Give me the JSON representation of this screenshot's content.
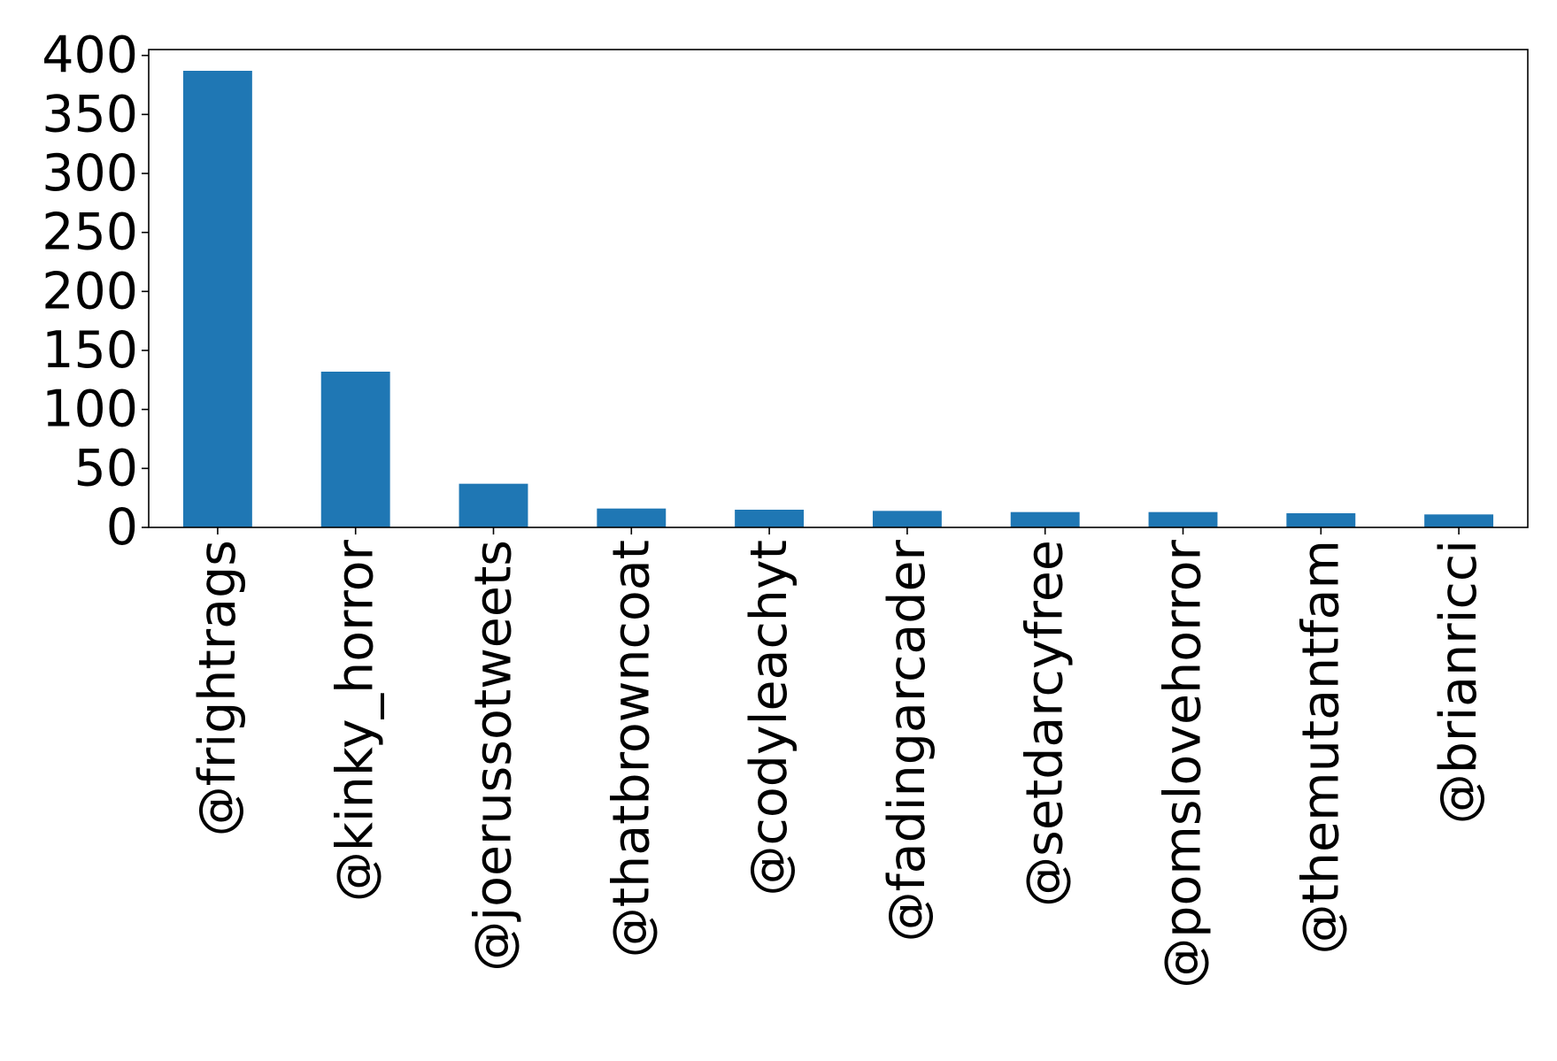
{
  "colors": {
    "bar": "#1f77b4",
    "axis": "#000000",
    "background": "#ffffff"
  },
  "chart_data": {
    "type": "bar",
    "title": "",
    "xlabel": "",
    "ylabel": "",
    "categories": [
      "@frightrags",
      "@kinky_horror",
      "@joerussotweets",
      "@thatbrowncoat",
      "@codyleachyt",
      "@fadingarcader",
      "@setdarcyfree",
      "@pomslovehorror",
      "@themutantfam",
      "@brianricci"
    ],
    "values": [
      387,
      132,
      37,
      16,
      15,
      14,
      13,
      13,
      12,
      11
    ],
    "ylim": [
      0,
      405
    ],
    "yticks": [
      0,
      50,
      100,
      150,
      200,
      250,
      300,
      350,
      400
    ],
    "grid": false,
    "legend": "none"
  }
}
